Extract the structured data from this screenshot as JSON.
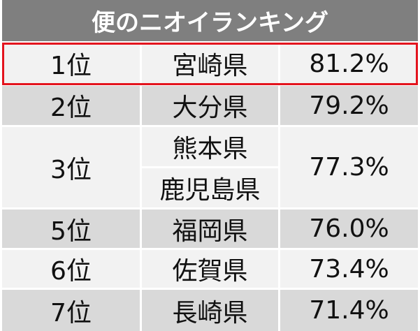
{
  "title": "便のニオイランキング",
  "table": {
    "rows": [
      {
        "rank": "1位",
        "prefectures": [
          "宮崎県"
        ],
        "value": "81.2%"
      },
      {
        "rank": "2位",
        "prefectures": [
          "大分県"
        ],
        "value": "79.2%"
      },
      {
        "rank": "3位",
        "prefectures": [
          "熊本県",
          "鹿児島県"
        ],
        "value": "77.3%"
      },
      {
        "rank": "5位",
        "prefectures": [
          "福岡県"
        ],
        "value": "76.0%"
      },
      {
        "rank": "6位",
        "prefectures": [
          "佐賀県"
        ],
        "value": "73.4%"
      },
      {
        "rank": "7位",
        "prefectures": [
          "長崎県"
        ],
        "value": "71.4%"
      }
    ]
  }
}
